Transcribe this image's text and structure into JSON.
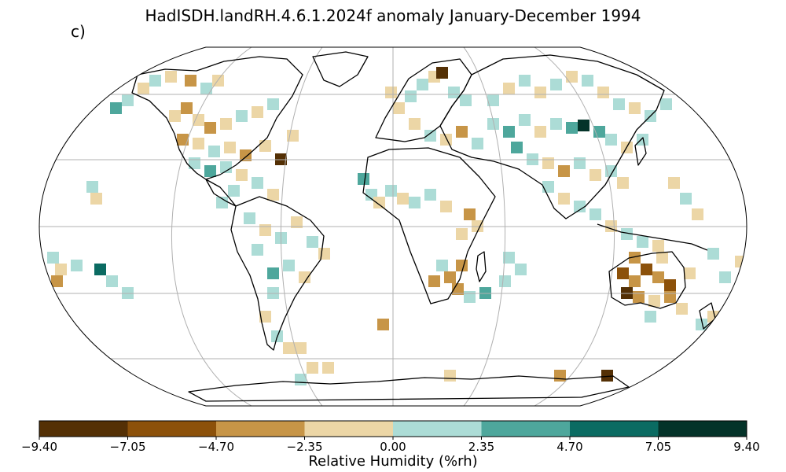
{
  "title": "HadISDH.landRH.4.6.1.2024f anomaly January-December 1994",
  "panel_label": "c)",
  "colorbar": {
    "label": "Relative Humidity (%rh)",
    "ticks": [
      "−9.40",
      "−7.05",
      "−4.70",
      "−2.35",
      "0.00",
      "2.35",
      "4.70",
      "7.05",
      "9.40"
    ],
    "colors": [
      "#543005",
      "#8c510a",
      "#c79547",
      "#ecd6a6",
      "#acdcd6",
      "#4ea79c",
      "#0b6b62",
      "#043329"
    ]
  },
  "legend_symbols": {
    "land_outline_color": "#000000",
    "graticule_color": "#b0b0b0"
  }
}
